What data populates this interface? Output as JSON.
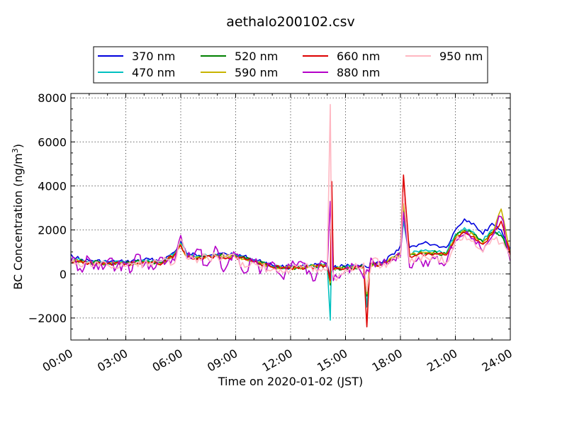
{
  "chart_data": {
    "type": "line",
    "title": "aethalo200102.csv",
    "xlabel": "Time on 2020-01-02 (JST)",
    "ylabel": "BC Concentration (ng/m³)",
    "xlim": [
      "00:00",
      "24:00"
    ],
    "ylim": [
      -3000,
      8200
    ],
    "grid": true,
    "legend_position": "top-center",
    "x_ticks": [
      "00:00",
      "03:00",
      "06:00",
      "09:00",
      "12:00",
      "15:00",
      "18:00",
      "21:00",
      "24:00"
    ],
    "y_ticks": [
      -2000,
      0,
      2000,
      4000,
      6000,
      8000
    ],
    "y_tick_labels": [
      "−2000",
      "0",
      "2000",
      "4000",
      "6000",
      "8000"
    ],
    "series": [
      {
        "name": "370 nm",
        "color": "#0000dd",
        "points": [
          [
            "00:00",
            900
          ],
          [
            "00:30",
            650
          ],
          [
            "01:00",
            600
          ],
          [
            "02:00",
            550
          ],
          [
            "03:00",
            550
          ],
          [
            "04:00",
            650
          ],
          [
            "05:00",
            600
          ],
          [
            "05:40",
            1000
          ],
          [
            "06:00",
            1500
          ],
          [
            "06:20",
            900
          ],
          [
            "07:00",
            850
          ],
          [
            "08:00",
            900
          ],
          [
            "09:00",
            900
          ],
          [
            "10:00",
            650
          ],
          [
            "11:00",
            400
          ],
          [
            "12:00",
            300
          ],
          [
            "13:00",
            350
          ],
          [
            "14:00",
            450
          ],
          [
            "14:10",
            -200
          ],
          [
            "14:15",
            1800
          ],
          [
            "14:20",
            300
          ],
          [
            "15:00",
            350
          ],
          [
            "16:00",
            400
          ],
          [
            "16:10",
            300
          ],
          [
            "16:30",
            500
          ],
          [
            "17:00",
            500
          ],
          [
            "17:40",
            900
          ],
          [
            "18:00",
            1300
          ],
          [
            "18:10",
            2700
          ],
          [
            "18:30",
            1200
          ],
          [
            "19:00",
            1350
          ],
          [
            "19:30",
            1400
          ],
          [
            "20:00",
            1300
          ],
          [
            "20:30",
            1200
          ],
          [
            "21:00",
            2000
          ],
          [
            "21:30",
            2500
          ],
          [
            "22:00",
            2300
          ],
          [
            "22:30",
            1800
          ],
          [
            "23:00",
            2300
          ],
          [
            "23:30",
            2000
          ],
          [
            "24:00",
            1100
          ]
        ]
      },
      {
        "name": "470 nm",
        "color": "#00c0c0",
        "points": [
          [
            "00:00",
            700
          ],
          [
            "01:00",
            550
          ],
          [
            "02:00",
            500
          ],
          [
            "03:00",
            500
          ],
          [
            "04:00",
            600
          ],
          [
            "05:00",
            550
          ],
          [
            "05:40",
            950
          ],
          [
            "06:00",
            1400
          ],
          [
            "06:20",
            850
          ],
          [
            "07:00",
            800
          ],
          [
            "08:00",
            850
          ],
          [
            "09:00",
            850
          ],
          [
            "10:00",
            600
          ],
          [
            "11:00",
            350
          ],
          [
            "12:00",
            300
          ],
          [
            "13:00",
            350
          ],
          [
            "14:00",
            400
          ],
          [
            "14:10",
            -2100
          ],
          [
            "14:15",
            1500
          ],
          [
            "14:20",
            250
          ],
          [
            "15:00",
            300
          ],
          [
            "16:00",
            350
          ],
          [
            "16:10",
            -1500
          ],
          [
            "16:20",
            500
          ],
          [
            "17:00",
            450
          ],
          [
            "17:40",
            800
          ],
          [
            "18:00",
            1000
          ],
          [
            "18:10",
            2400
          ],
          [
            "18:30",
            900
          ],
          [
            "19:00",
            1000
          ],
          [
            "19:30",
            1050
          ],
          [
            "20:00",
            1000
          ],
          [
            "20:30",
            950
          ],
          [
            "21:00",
            1800
          ],
          [
            "21:30",
            2100
          ],
          [
            "22:00",
            1900
          ],
          [
            "22:30",
            1500
          ],
          [
            "23:00",
            2000
          ],
          [
            "23:30",
            1800
          ],
          [
            "24:00",
            1000
          ]
        ]
      },
      {
        "name": "520 nm",
        "color": "#008000",
        "points": [
          [
            "00:00",
            650
          ],
          [
            "01:00",
            520
          ],
          [
            "02:00",
            480
          ],
          [
            "03:00",
            480
          ],
          [
            "04:00",
            560
          ],
          [
            "05:00",
            520
          ],
          [
            "05:40",
            900
          ],
          [
            "06:00",
            1350
          ],
          [
            "06:20",
            800
          ],
          [
            "07:00",
            780
          ],
          [
            "08:00",
            820
          ],
          [
            "09:00",
            820
          ],
          [
            "10:00",
            580
          ],
          [
            "11:00",
            330
          ],
          [
            "12:00",
            280
          ],
          [
            "13:00",
            330
          ],
          [
            "14:00",
            380
          ],
          [
            "14:10",
            -500
          ],
          [
            "14:15",
            2500
          ],
          [
            "14:20",
            230
          ],
          [
            "15:00",
            280
          ],
          [
            "16:00",
            330
          ],
          [
            "16:10",
            -1000
          ],
          [
            "16:20",
            450
          ],
          [
            "17:00",
            420
          ],
          [
            "17:40",
            760
          ],
          [
            "18:00",
            950
          ],
          [
            "18:10",
            3000
          ],
          [
            "18:30",
            850
          ],
          [
            "19:00",
            950
          ],
          [
            "19:30",
            980
          ],
          [
            "20:00",
            950
          ],
          [
            "20:30",
            900
          ],
          [
            "21:00",
            1700
          ],
          [
            "21:30",
            2000
          ],
          [
            "22:00",
            1800
          ],
          [
            "22:30",
            1450
          ],
          [
            "23:00",
            1900
          ],
          [
            "23:30",
            1750
          ],
          [
            "24:00",
            950
          ]
        ]
      },
      {
        "name": "590 nm",
        "color": "#c8b400",
        "points": [
          [
            "00:00",
            620
          ],
          [
            "01:00",
            500
          ],
          [
            "02:00",
            460
          ],
          [
            "03:00",
            460
          ],
          [
            "04:00",
            540
          ],
          [
            "05:00",
            500
          ],
          [
            "05:40",
            880
          ],
          [
            "06:00",
            1350
          ],
          [
            "06:20",
            780
          ],
          [
            "07:00",
            760
          ],
          [
            "08:00",
            800
          ],
          [
            "09:00",
            800
          ],
          [
            "10:00",
            560
          ],
          [
            "11:00",
            320
          ],
          [
            "12:00",
            270
          ],
          [
            "13:00",
            320
          ],
          [
            "14:00",
            370
          ],
          [
            "14:10",
            -400
          ],
          [
            "14:15",
            2800
          ],
          [
            "14:20",
            220
          ],
          [
            "15:00",
            270
          ],
          [
            "16:00",
            320
          ],
          [
            "16:10",
            -900
          ],
          [
            "16:20",
            440
          ],
          [
            "17:00",
            410
          ],
          [
            "17:40",
            740
          ],
          [
            "18:00",
            930
          ],
          [
            "18:10",
            3200
          ],
          [
            "18:30",
            830
          ],
          [
            "19:00",
            930
          ],
          [
            "19:30",
            960
          ],
          [
            "20:00",
            930
          ],
          [
            "20:30",
            880
          ],
          [
            "21:00",
            1650
          ],
          [
            "21:30",
            1950
          ],
          [
            "22:00",
            1750
          ],
          [
            "22:30",
            1400
          ],
          [
            "23:00",
            1850
          ],
          [
            "23:30",
            2950
          ],
          [
            "24:00",
            900
          ]
        ]
      },
      {
        "name": "660 nm",
        "color": "#dd0000",
        "points": [
          [
            "00:00",
            600
          ],
          [
            "01:00",
            480
          ],
          [
            "02:00",
            450
          ],
          [
            "03:00",
            450
          ],
          [
            "04:00",
            530
          ],
          [
            "05:00",
            490
          ],
          [
            "05:40",
            870
          ],
          [
            "06:00",
            1300
          ],
          [
            "06:20",
            760
          ],
          [
            "07:00",
            740
          ],
          [
            "08:00",
            780
          ],
          [
            "09:00",
            780
          ],
          [
            "10:00",
            540
          ],
          [
            "11:00",
            310
          ],
          [
            "12:00",
            260
          ],
          [
            "13:00",
            310
          ],
          [
            "14:00",
            360
          ],
          [
            "14:10",
            -300
          ],
          [
            "14:15",
            4200
          ],
          [
            "14:20",
            200
          ],
          [
            "15:00",
            260
          ],
          [
            "16:00",
            310
          ],
          [
            "16:10",
            -2400
          ],
          [
            "16:20",
            430
          ],
          [
            "17:00",
            400
          ],
          [
            "17:40",
            720
          ],
          [
            "18:00",
            900
          ],
          [
            "18:10",
            4500
          ],
          [
            "18:30",
            800
          ],
          [
            "19:00",
            900
          ],
          [
            "19:30",
            930
          ],
          [
            "20:00",
            900
          ],
          [
            "20:30",
            860
          ],
          [
            "21:00",
            1600
          ],
          [
            "21:30",
            1900
          ],
          [
            "22:00",
            1700
          ],
          [
            "22:30",
            1350
          ],
          [
            "23:00",
            1800
          ],
          [
            "23:30",
            2400
          ],
          [
            "24:00",
            850
          ]
        ]
      },
      {
        "name": "880 nm",
        "color": "#b400c8",
        "points": [
          [
            "00:00",
            580
          ],
          [
            "00:30",
            250
          ],
          [
            "01:00",
            700
          ],
          [
            "01:30",
            200
          ],
          [
            "02:00",
            600
          ],
          [
            "02:30",
            300
          ],
          [
            "03:00",
            450
          ],
          [
            "03:20",
            150
          ],
          [
            "03:40",
            900
          ],
          [
            "04:00",
            400
          ],
          [
            "04:30",
            200
          ],
          [
            "05:00",
            750
          ],
          [
            "05:40",
            600
          ],
          [
            "06:00",
            1750
          ],
          [
            "06:20",
            700
          ],
          [
            "07:00",
            1100
          ],
          [
            "07:20",
            400
          ],
          [
            "08:00",
            1100
          ],
          [
            "08:20",
            100
          ],
          [
            "09:00",
            900
          ],
          [
            "09:20",
            200
          ],
          [
            "10:00",
            500
          ],
          [
            "10:40",
            100
          ],
          [
            "11:00",
            550
          ],
          [
            "11:30",
            -100
          ],
          [
            "12:00",
            350
          ],
          [
            "12:40",
            500
          ],
          [
            "13:00",
            150
          ],
          [
            "13:20",
            -300
          ],
          [
            "13:40",
            600
          ],
          [
            "14:00",
            250
          ],
          [
            "14:10",
            3300
          ],
          [
            "14:20",
            -300
          ],
          [
            "15:00",
            200
          ],
          [
            "15:40",
            400
          ],
          [
            "16:00",
            -200
          ],
          [
            "16:10",
            200
          ],
          [
            "16:30",
            600
          ],
          [
            "17:00",
            350
          ],
          [
            "17:30",
            600
          ],
          [
            "18:00",
            800
          ],
          [
            "18:10",
            2800
          ],
          [
            "18:30",
            300
          ],
          [
            "19:00",
            750
          ],
          [
            "19:30",
            350
          ],
          [
            "20:00",
            800
          ],
          [
            "20:30",
            500
          ],
          [
            "21:00",
            1500
          ],
          [
            "21:30",
            1800
          ],
          [
            "22:00",
            1600
          ],
          [
            "22:30",
            1000
          ],
          [
            "23:00",
            1700
          ],
          [
            "23:30",
            2600
          ],
          [
            "24:00",
            600
          ]
        ]
      },
      {
        "name": "950 nm",
        "color": "#ffb6c1",
        "points": [
          [
            "00:00",
            500
          ],
          [
            "00:30",
            350
          ],
          [
            "01:00",
            550
          ],
          [
            "02:00",
            400
          ],
          [
            "03:00",
            350
          ],
          [
            "04:00",
            500
          ],
          [
            "05:00",
            600
          ],
          [
            "05:40",
            500
          ],
          [
            "06:00",
            1600
          ],
          [
            "06:20",
            700
          ],
          [
            "07:00",
            700
          ],
          [
            "08:00",
            800
          ],
          [
            "09:00",
            700
          ],
          [
            "09:30",
            300
          ],
          [
            "10:00",
            500
          ],
          [
            "11:00",
            200
          ],
          [
            "12:00",
            200
          ],
          [
            "13:00",
            300
          ],
          [
            "14:00",
            200
          ],
          [
            "14:10",
            7700
          ],
          [
            "14:15",
            200
          ],
          [
            "14:30",
            -300
          ],
          [
            "15:00",
            200
          ],
          [
            "16:00",
            500
          ],
          [
            "16:10",
            -800
          ],
          [
            "16:30",
            700
          ],
          [
            "17:00",
            350
          ],
          [
            "17:40",
            700
          ],
          [
            "18:00",
            900
          ],
          [
            "18:10",
            3700
          ],
          [
            "18:30",
            500
          ],
          [
            "19:00",
            800
          ],
          [
            "19:30",
            700
          ],
          [
            "20:00",
            750
          ],
          [
            "20:30",
            500
          ],
          [
            "21:00",
            1500
          ],
          [
            "21:30",
            1800
          ],
          [
            "22:00",
            1500
          ],
          [
            "22:30",
            1000
          ],
          [
            "23:00",
            1600
          ],
          [
            "23:30",
            1400
          ],
          [
            "24:00",
            700
          ]
        ]
      }
    ]
  }
}
